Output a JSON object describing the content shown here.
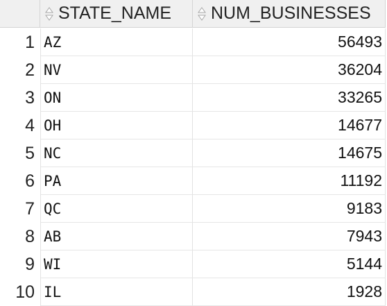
{
  "table": {
    "columns": [
      {
        "label": "STATE_NAME",
        "sort_icon": "sort-toggle-icon"
      },
      {
        "label": "NUM_BUSINESSES",
        "sort_icon": "sort-toggle-icon"
      }
    ],
    "rows": [
      {
        "index": "1",
        "state": "AZ",
        "num": "56493"
      },
      {
        "index": "2",
        "state": "NV",
        "num": "36204"
      },
      {
        "index": "3",
        "state": "ON",
        "num": "33265"
      },
      {
        "index": "4",
        "state": "OH",
        "num": "14677"
      },
      {
        "index": "5",
        "state": "NC",
        "num": "14675"
      },
      {
        "index": "6",
        "state": "PA",
        "num": "11192"
      },
      {
        "index": "7",
        "state": "QC",
        "num": "9183"
      },
      {
        "index": "8",
        "state": "AB",
        "num": "7943"
      },
      {
        "index": "9",
        "state": "WI",
        "num": "5144"
      },
      {
        "index": "10",
        "state": "IL",
        "num": "1928"
      }
    ]
  }
}
